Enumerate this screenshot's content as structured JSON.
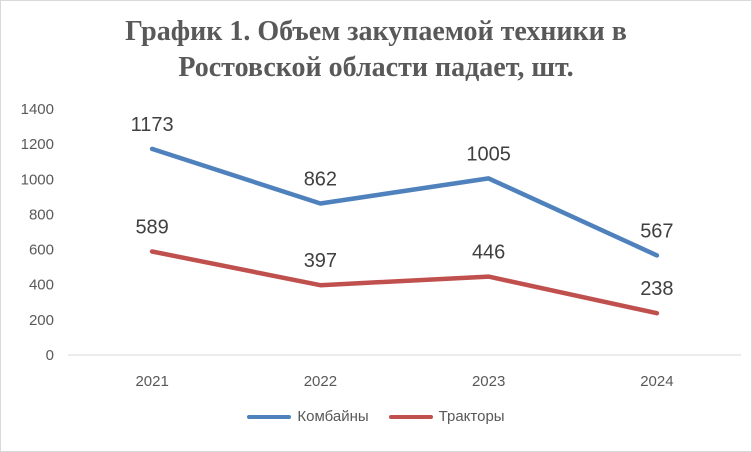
{
  "chart_data": {
    "type": "line",
    "title_lines": [
      "График 1. Объем закупаемой техники в",
      "Ростовской области падает, шт."
    ],
    "categories": [
      "2021",
      "2022",
      "2023",
      "2024"
    ],
    "series": [
      {
        "name": "Комбайны",
        "color": "#4f81bd",
        "values": [
          1173,
          862,
          1005,
          567
        ]
      },
      {
        "name": "Тракторы",
        "color": "#c0504d",
        "values": [
          589,
          397,
          446,
          238
        ]
      }
    ],
    "ylim": [
      0,
      1400
    ],
    "yticks": [
      0,
      200,
      400,
      600,
      800,
      1000,
      1200,
      1400
    ],
    "grid": false,
    "legend_position": "bottom",
    "data_labels": true
  }
}
